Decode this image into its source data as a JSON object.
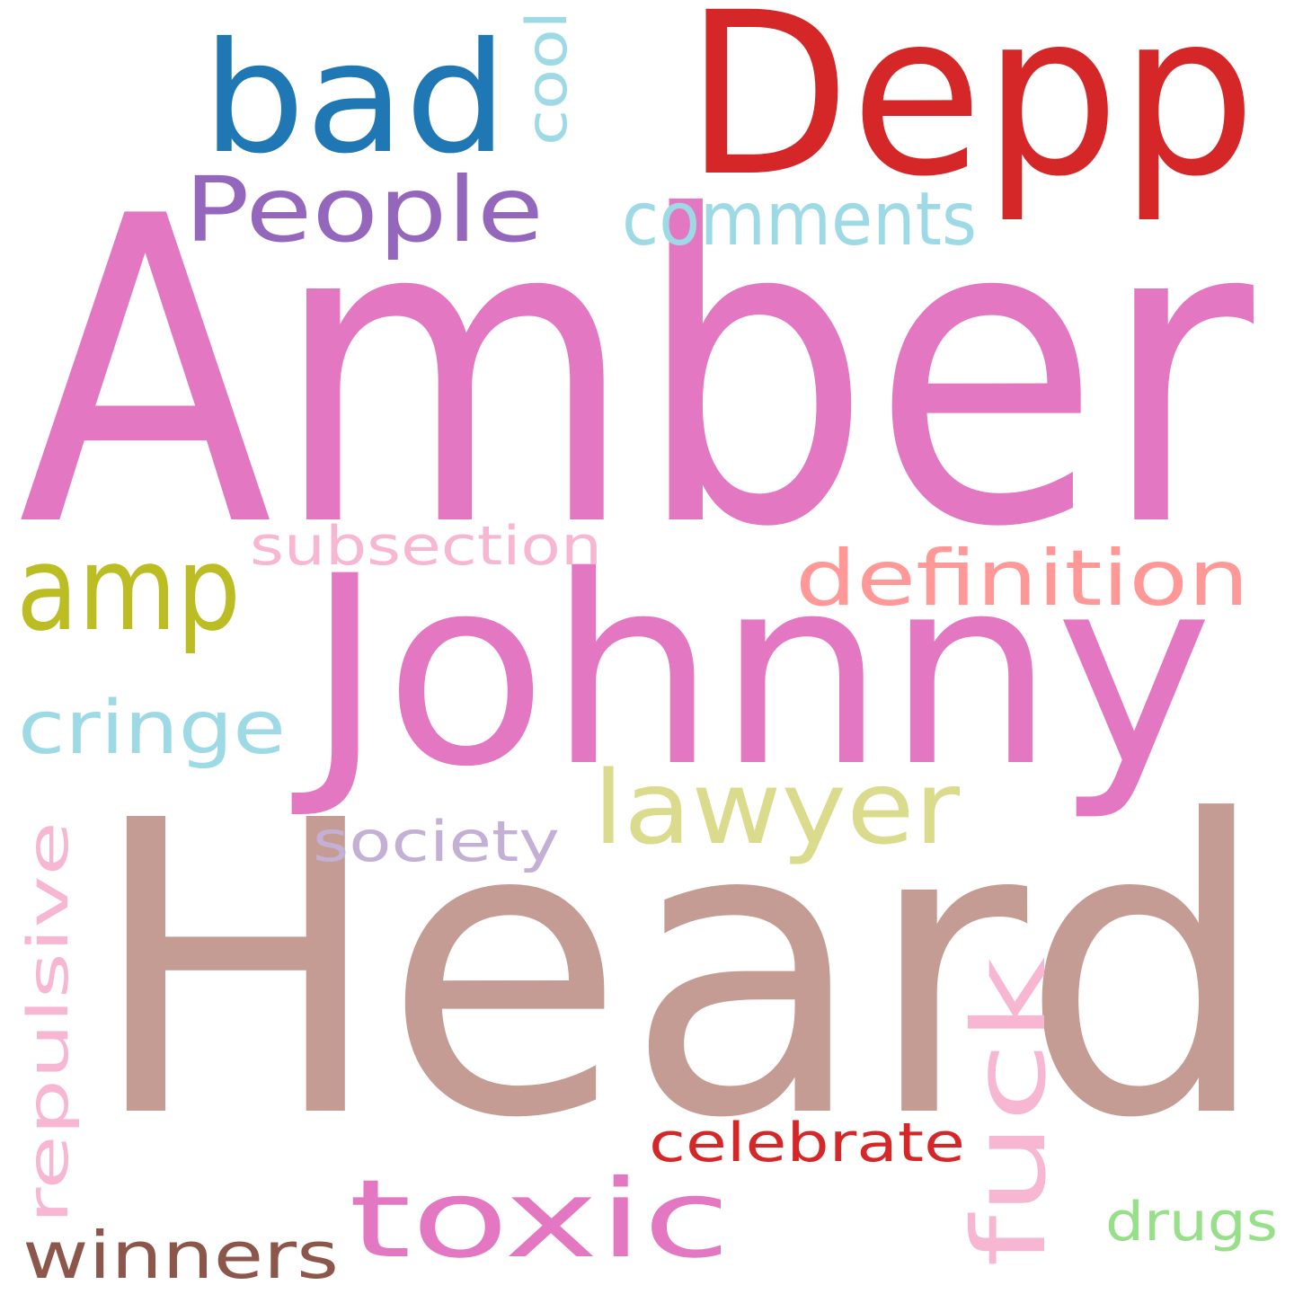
{
  "words": [
    {
      "id": "amber",
      "text": "Amber",
      "color": "#e377c2",
      "orientation": "horizontal"
    },
    {
      "id": "heard",
      "text": "Heard",
      "color": "#c49c94",
      "orientation": "horizontal"
    },
    {
      "id": "johnny",
      "text": "Johnny",
      "color": "#e377c2",
      "orientation": "horizontal"
    },
    {
      "id": "depp",
      "text": "Depp",
      "color": "#d62728",
      "orientation": "horizontal"
    },
    {
      "id": "bad",
      "text": "bad",
      "color": "#1f77b4",
      "orientation": "horizontal"
    },
    {
      "id": "cool",
      "text": "cool",
      "color": "#9edae5",
      "orientation": "vertical"
    },
    {
      "id": "people",
      "text": "People",
      "color": "#9467bd",
      "orientation": "horizontal"
    },
    {
      "id": "comments",
      "text": "comments",
      "color": "#9edae5",
      "orientation": "horizontal"
    },
    {
      "id": "amp",
      "text": "amp",
      "color": "#bcbd22",
      "orientation": "horizontal"
    },
    {
      "id": "subsection",
      "text": "subsection",
      "color": "#f7b6d2",
      "orientation": "horizontal"
    },
    {
      "id": "definition",
      "text": "definition",
      "color": "#ff9896",
      "orientation": "horizontal"
    },
    {
      "id": "cringe",
      "text": "cringe",
      "color": "#9edae5",
      "orientation": "horizontal"
    },
    {
      "id": "lawyer",
      "text": "lawyer",
      "color": "#dbdb8d",
      "orientation": "horizontal"
    },
    {
      "id": "society",
      "text": "society",
      "color": "#c5b0d5",
      "orientation": "horizontal"
    },
    {
      "id": "repulsive",
      "text": "repulsive",
      "color": "#f7b6d2",
      "orientation": "vertical"
    },
    {
      "id": "fuck",
      "text": "fuck",
      "color": "#f7b6d2",
      "orientation": "vertical"
    },
    {
      "id": "celebrate",
      "text": "celebrate",
      "color": "#d62728",
      "orientation": "horizontal"
    },
    {
      "id": "toxic",
      "text": "toxic",
      "color": "#e377c2",
      "orientation": "horizontal"
    },
    {
      "id": "drugs",
      "text": "drugs",
      "color": "#98df8a",
      "orientation": "horizontal"
    },
    {
      "id": "winners",
      "text": "winners",
      "color": "#8c564b",
      "orientation": "horizontal"
    }
  ]
}
